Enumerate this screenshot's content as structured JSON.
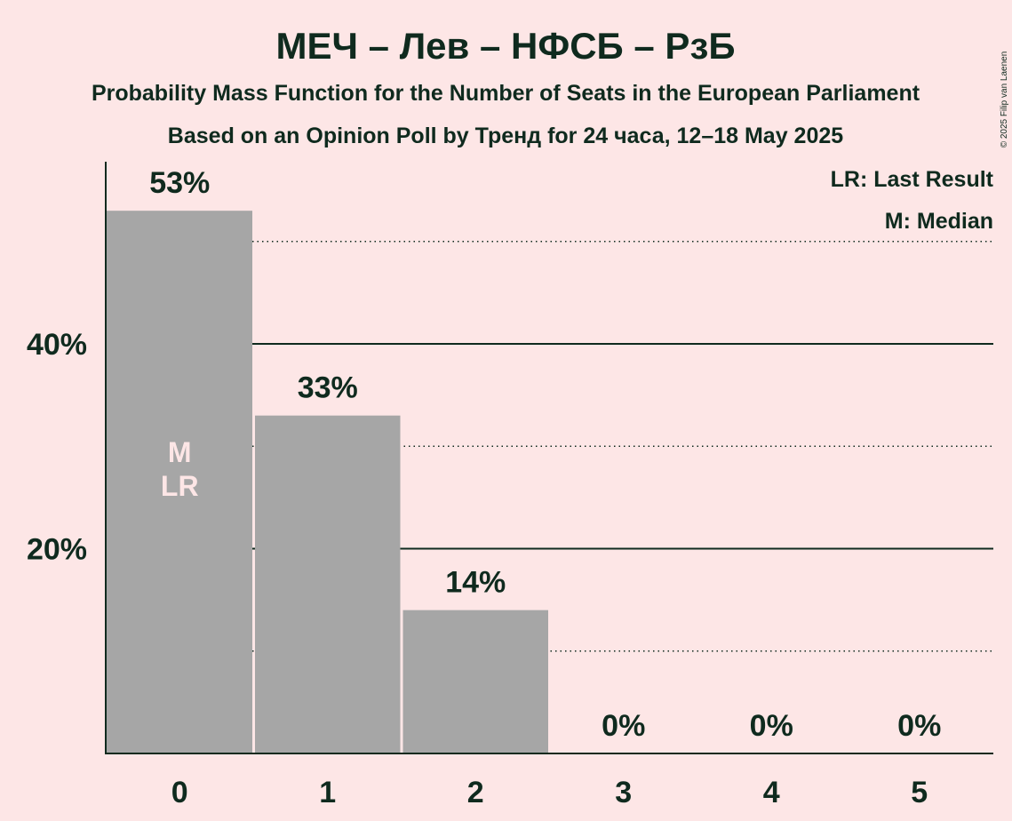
{
  "chart_data": {
    "type": "bar",
    "title": "МЕЧ – Лев – НФСБ – РзБ",
    "subtitle": "Probability Mass Function for the Number of Seats in the European Parliament",
    "subtitle2": "Based on an Opinion Poll by Тренд for 24 часа, 12–18 May 2025",
    "copyright": "© 2025 Filip van Laenen",
    "legend": {
      "position": "top-right",
      "entries": [
        "LR: Last Result",
        "M: Median"
      ]
    },
    "categories": [
      "0",
      "1",
      "2",
      "3",
      "4",
      "5"
    ],
    "values": [
      53,
      33,
      14,
      0,
      0,
      0
    ],
    "value_labels": [
      "53%",
      "33%",
      "14%",
      "0%",
      "0%",
      "0%"
    ],
    "bar_inner_labels": [
      [
        "M",
        "LR"
      ],
      [],
      [],
      [],
      [],
      []
    ],
    "y_ticks": [
      20,
      40
    ],
    "y_tick_labels": [
      "20%",
      "40%"
    ],
    "dotted_gridlines": [
      10,
      30,
      50
    ],
    "ylim": [
      0,
      58
    ],
    "xlabel": "",
    "ylabel": "",
    "colors": {
      "background": "#fde6e6",
      "bar": "#a6a6a6",
      "text": "#0f2a1e",
      "inner_label": "#fde6e6"
    }
  }
}
